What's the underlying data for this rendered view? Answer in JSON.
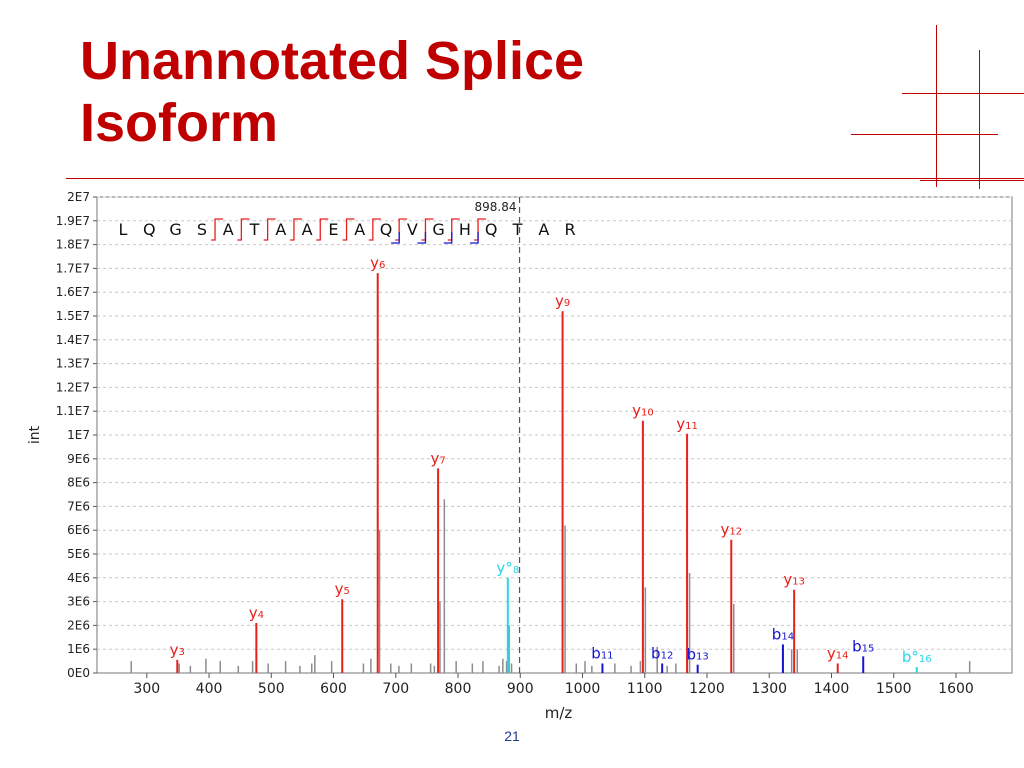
{
  "slide": {
    "title_line1": "Unannotated Splice",
    "title_line2": "Isoform",
    "page_number": "21",
    "accent_color": "#c00000"
  },
  "chart_data": {
    "type": "bar",
    "subtype": "ms2-spectrum",
    "xlabel": "m/z",
    "ylabel": "int",
    "xlim": [
      220,
      1690
    ],
    "ylim": [
      0,
      20000000
    ],
    "xticks": [
      300,
      400,
      500,
      600,
      700,
      800,
      900,
      1000,
      1100,
      1200,
      1300,
      1400,
      1500,
      1600
    ],
    "yticks": [
      {
        "value": 0,
        "label": "0E0"
      },
      {
        "value": 1000000,
        "label": "1E6"
      },
      {
        "value": 2000000,
        "label": "2E6"
      },
      {
        "value": 3000000,
        "label": "3E6"
      },
      {
        "value": 4000000,
        "label": "4E6"
      },
      {
        "value": 5000000,
        "label": "5E6"
      },
      {
        "value": 6000000,
        "label": "6E6"
      },
      {
        "value": 7000000,
        "label": "7E6"
      },
      {
        "value": 8000000,
        "label": "8E6"
      },
      {
        "value": 9000000,
        "label": "9E6"
      },
      {
        "value": 10000000,
        "label": "1E7"
      },
      {
        "value": 11000000,
        "label": "1.1E7"
      },
      {
        "value": 12000000,
        "label": "1.2E7"
      },
      {
        "value": 13000000,
        "label": "1.3E7"
      },
      {
        "value": 14000000,
        "label": "1.4E7"
      },
      {
        "value": 15000000,
        "label": "1.5E7"
      },
      {
        "value": 16000000,
        "label": "1.6E7"
      },
      {
        "value": 17000000,
        "label": "1.7E7"
      },
      {
        "value": 18000000,
        "label": "1.8E7"
      },
      {
        "value": 19000000,
        "label": "1.9E7"
      },
      {
        "value": 20000000,
        "label": "2E7"
      }
    ],
    "grid": true,
    "precursor": {
      "mz": 898.84,
      "label": "898.84"
    },
    "sequence": [
      "L",
      "Q",
      "G",
      "S",
      "A",
      "T",
      "A",
      "A",
      "E",
      "A",
      "Q",
      "V",
      "G",
      "H",
      "Q",
      "T",
      "A",
      "R"
    ],
    "y_ion_bracket_positions": [
      4,
      5,
      6,
      7,
      8,
      9,
      10,
      11,
      12,
      13,
      14
    ],
    "b_ion_bracket_positions": [
      11,
      12,
      13,
      14
    ],
    "colors": {
      "y": "#e8201c",
      "b": "#1414d2",
      "neutral_loss": "#21d9e8",
      "unassigned": "#8c8c8c",
      "precursor_line": "#555555"
    },
    "peaks": [
      {
        "mz": 349,
        "intensity": 550000,
        "type": "y",
        "ion": "y",
        "index": "3"
      },
      {
        "mz": 476,
        "intensity": 2100000,
        "type": "y",
        "ion": "y",
        "index": "4"
      },
      {
        "mz": 614,
        "intensity": 3100000,
        "type": "y",
        "ion": "y",
        "index": "5"
      },
      {
        "mz": 671,
        "intensity": 16800000,
        "type": "y",
        "ion": "y",
        "index": "6"
      },
      {
        "mz": 768,
        "intensity": 8600000,
        "type": "y",
        "ion": "y",
        "index": "7"
      },
      {
        "mz": 880,
        "intensity": 4000000,
        "type": "neutral_loss",
        "ion": "y°",
        "index": "8"
      },
      {
        "mz": 968,
        "intensity": 15200000,
        "type": "y",
        "ion": "y",
        "index": "9"
      },
      {
        "mz": 1097,
        "intensity": 10600000,
        "type": "y",
        "ion": "y",
        "index": "10"
      },
      {
        "mz": 1168,
        "intensity": 10050000,
        "type": "y",
        "ion": "y",
        "index": "11"
      },
      {
        "mz": 1239,
        "intensity": 5600000,
        "type": "y",
        "ion": "y",
        "index": "12"
      },
      {
        "mz": 1340,
        "intensity": 3500000,
        "type": "y",
        "ion": "y",
        "index": "13"
      },
      {
        "mz": 1410,
        "intensity": 400000,
        "type": "y",
        "ion": "y",
        "index": "14"
      },
      {
        "mz": 1032,
        "intensity": 400000,
        "type": "b",
        "ion": "b",
        "index": "11"
      },
      {
        "mz": 1128,
        "intensity": 400000,
        "type": "b",
        "ion": "b",
        "index": "12"
      },
      {
        "mz": 1185,
        "intensity": 350000,
        "type": "b",
        "ion": "b",
        "index": "13"
      },
      {
        "mz": 1322,
        "intensity": 1200000,
        "type": "b",
        "ion": "b",
        "index": "14"
      },
      {
        "mz": 1451,
        "intensity": 700000,
        "type": "b",
        "ion": "b",
        "index": "15"
      },
      {
        "mz": 1537,
        "intensity": 250000,
        "type": "neutral_loss",
        "ion": "b°",
        "index": "16"
      }
    ],
    "unassigned_peaks": [
      {
        "mz": 275,
        "intensity": 500000
      },
      {
        "mz": 352,
        "intensity": 400000
      },
      {
        "mz": 370,
        "intensity": 300000
      },
      {
        "mz": 395,
        "intensity": 600000
      },
      {
        "mz": 418,
        "intensity": 500000
      },
      {
        "mz": 447,
        "intensity": 300000
      },
      {
        "mz": 470,
        "intensity": 500000
      },
      {
        "mz": 495,
        "intensity": 400000
      },
      {
        "mz": 523,
        "intensity": 500000
      },
      {
        "mz": 546,
        "intensity": 300000
      },
      {
        "mz": 565,
        "intensity": 400000
      },
      {
        "mz": 570,
        "intensity": 750000
      },
      {
        "mz": 597,
        "intensity": 500000
      },
      {
        "mz": 648,
        "intensity": 400000
      },
      {
        "mz": 660,
        "intensity": 600000
      },
      {
        "mz": 674,
        "intensity": 6000000
      },
      {
        "mz": 692,
        "intensity": 400000
      },
      {
        "mz": 705,
        "intensity": 300000
      },
      {
        "mz": 725,
        "intensity": 400000
      },
      {
        "mz": 756,
        "intensity": 400000
      },
      {
        "mz": 762,
        "intensity": 300000
      },
      {
        "mz": 771,
        "intensity": 3000000
      },
      {
        "mz": 778,
        "intensity": 7300000
      },
      {
        "mz": 797,
        "intensity": 500000
      },
      {
        "mz": 823,
        "intensity": 400000
      },
      {
        "mz": 840,
        "intensity": 500000
      },
      {
        "mz": 866,
        "intensity": 300000
      },
      {
        "mz": 872,
        "intensity": 600000
      },
      {
        "mz": 878,
        "intensity": 500000
      },
      {
        "mz": 882,
        "intensity": 2000000
      },
      {
        "mz": 886,
        "intensity": 400000
      },
      {
        "mz": 972,
        "intensity": 6200000
      },
      {
        "mz": 990,
        "intensity": 400000
      },
      {
        "mz": 1004,
        "intensity": 500000
      },
      {
        "mz": 1015,
        "intensity": 300000
      },
      {
        "mz": 1052,
        "intensity": 400000
      },
      {
        "mz": 1078,
        "intensity": 300000
      },
      {
        "mz": 1093,
        "intensity": 500000
      },
      {
        "mz": 1101,
        "intensity": 3600000
      },
      {
        "mz": 1120,
        "intensity": 1100000
      },
      {
        "mz": 1136,
        "intensity": 300000
      },
      {
        "mz": 1150,
        "intensity": 400000
      },
      {
        "mz": 1172,
        "intensity": 4200000
      },
      {
        "mz": 1243,
        "intensity": 2900000
      },
      {
        "mz": 1336,
        "intensity": 1000000
      },
      {
        "mz": 1345,
        "intensity": 1000000
      },
      {
        "mz": 1622,
        "intensity": 500000
      }
    ]
  }
}
